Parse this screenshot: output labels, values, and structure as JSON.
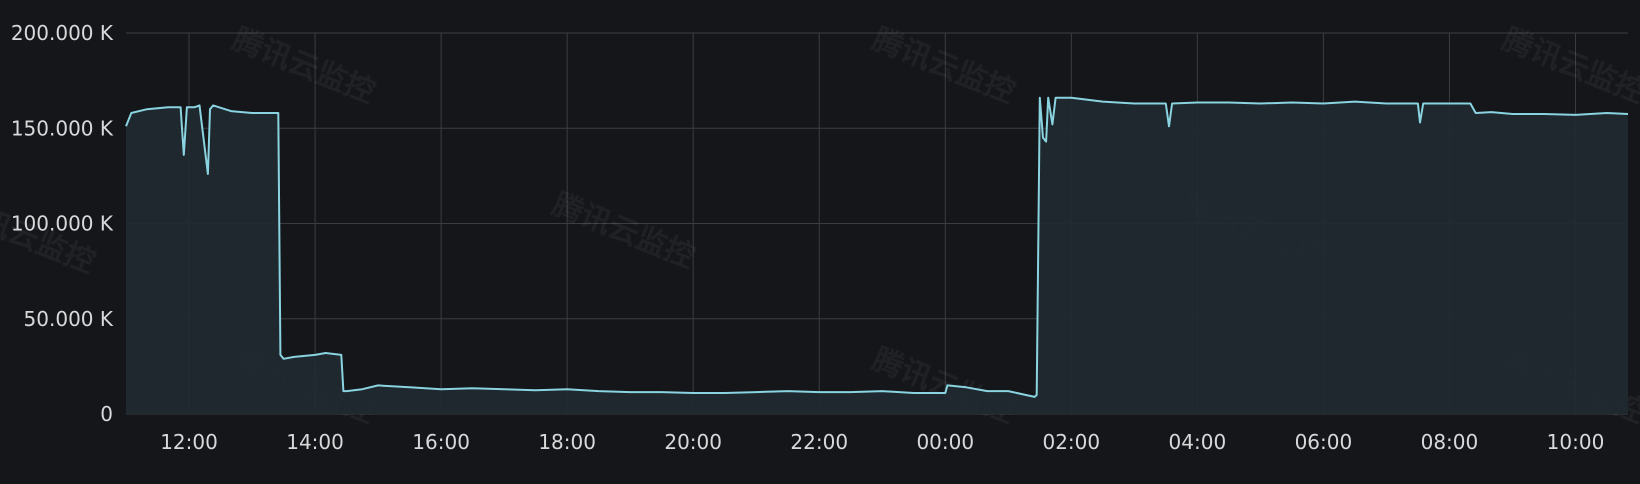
{
  "chart_data": {
    "type": "area",
    "title": "",
    "xlabel": "",
    "ylabel": "",
    "ylim": [
      0,
      200000
    ],
    "y_ticks": [
      {
        "value": 0,
        "label": "0"
      },
      {
        "value": 50000,
        "label": "50.000 K"
      },
      {
        "value": 100000,
        "label": "100.000 K"
      },
      {
        "value": 150000,
        "label": "150.000 K"
      },
      {
        "value": 200000,
        "label": "200.000 K"
      }
    ],
    "xlim": [
      "11:00",
      "10:50"
    ],
    "x_tick_labels": [
      "12:00",
      "14:00",
      "16:00",
      "18:00",
      "20:00",
      "22:00",
      "00:00",
      "02:00",
      "04:00",
      "06:00",
      "08:00",
      "10:00"
    ],
    "grid": true,
    "line_color": "#8ad3e0",
    "fill_color": "#1f2a31",
    "series": [
      {
        "x": [
          "11:00",
          "11:05",
          "11:20",
          "11:40",
          "11:52",
          "11:55",
          "11:58",
          "12:05",
          "12:10",
          "12:18",
          "12:20",
          "12:23",
          "12:40",
          "13:00",
          "13:20",
          "13:25",
          "13:27",
          "13:30",
          "13:40",
          "14:00",
          "14:10",
          "14:25",
          "14:27",
          "14:30",
          "14:45",
          "15:00",
          "15:30",
          "16:00",
          "16:30",
          "17:00",
          "17:30",
          "18:00",
          "18:30",
          "19:00",
          "19:30",
          "20:00",
          "20:30",
          "21:00",
          "21:30",
          "22:00",
          "22:30",
          "23:00",
          "23:30",
          "00:00",
          "00:02",
          "00:20",
          "00:40",
          "01:00",
          "01:25",
          "01:27",
          "01:30",
          "01:33",
          "01:36",
          "01:38",
          "01:42",
          "01:45",
          "02:00",
          "02:30",
          "03:00",
          "03:30",
          "03:33",
          "03:36",
          "04:00",
          "04:30",
          "05:00",
          "05:30",
          "06:00",
          "06:30",
          "07:00",
          "07:30",
          "07:32",
          "07:35",
          "08:00",
          "08:20",
          "08:25",
          "08:40",
          "09:00",
          "09:30",
          "10:00",
          "10:30",
          "10:50"
        ],
        "y": [
          151000,
          158000,
          160000,
          161000,
          161000,
          136000,
          161000,
          161000,
          162000,
          126000,
          160000,
          162000,
          159000,
          158000,
          158000,
          158000,
          31000,
          29000,
          30000,
          31000,
          32000,
          31000,
          12000,
          12000,
          13000,
          15000,
          14000,
          13000,
          13500,
          13000,
          12500,
          13000,
          12000,
          11500,
          11500,
          11000,
          11000,
          11500,
          12000,
          11500,
          11500,
          12000,
          11000,
          11000,
          15000,
          14000,
          12000,
          12000,
          9000,
          10000,
          166000,
          145000,
          143000,
          166000,
          152000,
          166000,
          166000,
          164000,
          163000,
          163000,
          151000,
          163000,
          163500,
          163500,
          163000,
          163500,
          163000,
          164000,
          163000,
          163000,
          153000,
          163000,
          163000,
          163000,
          158000,
          158500,
          157500,
          157500,
          157000,
          158000,
          157500
        ]
      }
    ]
  },
  "watermark": {
    "text": "腾讯云监控"
  }
}
